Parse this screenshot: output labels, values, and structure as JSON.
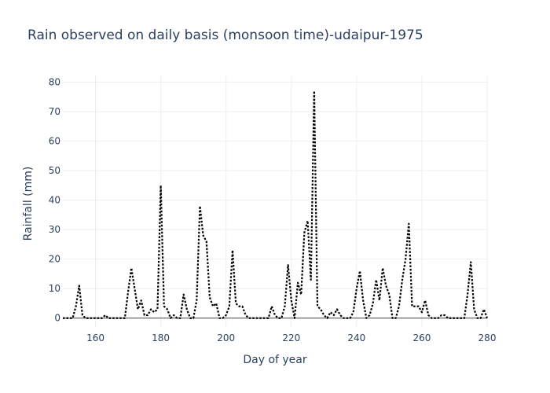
{
  "chart_data": {
    "type": "line",
    "title": "Rain observed on daily basis (monsoon time)-udaipur-1975",
    "xlabel": "Day of year",
    "ylabel": "Rainfall (mm)",
    "xlim": [
      150,
      280
    ],
    "ylim": [
      -3,
      82
    ],
    "x_ticks": [
      160,
      180,
      200,
      220,
      240,
      260,
      280
    ],
    "y_ticks": [
      0,
      10,
      20,
      30,
      40,
      50,
      60,
      70,
      80
    ],
    "grid": true,
    "line_style": "dotted",
    "line_color": "#000000",
    "series": [
      {
        "x": [
          150,
          151,
          152,
          153,
          154,
          155,
          156,
          157,
          158,
          159,
          160,
          161,
          162,
          163,
          164,
          165,
          166,
          167,
          168,
          169,
          170,
          171,
          172,
          173,
          174,
          175,
          176,
          177,
          178,
          179,
          180,
          181,
          182,
          183,
          184,
          185,
          186,
          187,
          188,
          189,
          190,
          191,
          192,
          193,
          194,
          195,
          196,
          197,
          198,
          199,
          200,
          201,
          202,
          203,
          204,
          205,
          206,
          207,
          208,
          209,
          210,
          211,
          212,
          213,
          214,
          215,
          216,
          217,
          218,
          219,
          220,
          221,
          222,
          223,
          224,
          225,
          226,
          227,
          228,
          229,
          230,
          231,
          232,
          233,
          234,
          235,
          236,
          237,
          238,
          239,
          240,
          241,
          242,
          243,
          244,
          245,
          246,
          247,
          248,
          249,
          250,
          251,
          252,
          253,
          254,
          255,
          256,
          257,
          258,
          259,
          260,
          261,
          262,
          263,
          264,
          265,
          266,
          267,
          268,
          269,
          270,
          271,
          272,
          273,
          274,
          275,
          276,
          277,
          278,
          279,
          280
        ],
        "y": [
          0,
          0,
          0,
          0,
          4,
          11,
          1,
          0,
          0,
          0,
          0,
          0,
          0,
          1,
          0,
          0,
          0,
          0,
          0,
          0,
          9,
          17,
          10,
          3,
          6,
          1,
          1,
          3,
          2,
          3,
          45,
          4,
          3,
          0,
          1,
          0,
          0,
          8,
          3,
          0,
          0,
          6,
          38,
          28,
          26,
          7,
          4,
          5,
          0,
          0,
          1,
          4,
          23,
          5,
          4,
          4,
          1,
          0,
          0,
          0,
          0,
          0,
          0,
          0,
          4,
          1,
          0,
          0,
          4,
          18,
          6,
          0,
          12,
          8,
          29,
          33,
          13,
          77,
          4,
          3,
          1,
          0,
          2,
          1,
          3,
          1,
          0,
          0,
          0,
          2,
          10,
          16,
          6,
          0,
          1,
          5,
          13,
          6,
          17,
          11,
          8,
          0,
          0,
          4,
          13,
          20,
          32,
          4,
          4,
          4,
          2,
          6,
          1,
          0,
          0,
          0,
          1,
          1,
          0,
          0,
          0,
          0,
          0,
          0,
          8,
          19,
          3,
          0,
          0,
          3,
          0
        ]
      }
    ]
  }
}
